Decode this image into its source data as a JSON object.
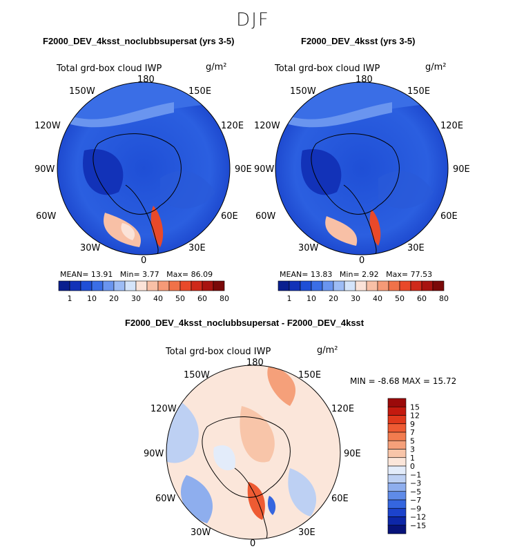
{
  "figure": {
    "season_title": "DJF"
  },
  "panels": [
    {
      "title": "F2000_DEV_4ksst_noclubbsupersat (yrs 3-5)",
      "variable": "Total grd-box cloud IWP",
      "units": "g/m²",
      "stats": {
        "mean_label": "MEAN=",
        "mean": "13.91",
        "min_label": "Min=",
        "min": "3.77",
        "max_label": "Max=",
        "max": "86.09"
      }
    },
    {
      "title": "F2000_DEV_4ksst (yrs 3-5)",
      "variable": "Total grd-box cloud IWP",
      "units": "g/m²",
      "stats": {
        "mean_label": "MEAN=",
        "mean": "13.83",
        "min_label": "Min=",
        "min": "2.92",
        "max_label": "Max=",
        "max": "77.53"
      }
    },
    {
      "title": "F2000_DEV_4ksst_noclubbsupersat - F2000_DEV_4ksst",
      "variable": "Total grd-box cloud IWP",
      "units": "g/m²",
      "range_text": "MIN =   -8.68 MAX =   15.72"
    }
  ],
  "longitude_labels": [
    "180",
    "150E",
    "120E",
    "90E",
    "60E",
    "30E",
    "0",
    "30W",
    "60W",
    "90W",
    "120W",
    "150W"
  ],
  "chart_data": [
    {
      "type": "heatmap",
      "projection": "north polar stereographic",
      "title": "F2000_DEV_4ksst_noclubbsupersat (yrs 3-5)",
      "variable": "Total grd-box cloud IWP",
      "units": "g/m²",
      "mean": 13.91,
      "min": 3.77,
      "max": 86.09,
      "colorbar_ticks": [
        "1",
        "10",
        "20",
        "30",
        "40",
        "50",
        "60",
        "80"
      ],
      "colorbar_colors": [
        "#0a1f8f",
        "#1232b8",
        "#1f4fd6",
        "#3a6ee6",
        "#6a95ef",
        "#9dbcf5",
        "#d4e4fa",
        "#fbe3d8",
        "#f8c0a6",
        "#f59a77",
        "#f07249",
        "#e9492a",
        "#cf2a1a",
        "#a81410",
        "#7a0908"
      ]
    },
    {
      "type": "heatmap",
      "projection": "north polar stereographic",
      "title": "F2000_DEV_4ksst (yrs 3-5)",
      "variable": "Total grd-box cloud IWP",
      "units": "g/m²",
      "mean": 13.83,
      "min": 2.92,
      "max": 77.53,
      "colorbar_ticks": [
        "1",
        "10",
        "20",
        "30",
        "40",
        "50",
        "60",
        "80"
      ],
      "colorbar_colors": [
        "#0a1f8f",
        "#1232b8",
        "#1f4fd6",
        "#3a6ee6",
        "#6a95ef",
        "#9dbcf5",
        "#d4e4fa",
        "#fbe3d8",
        "#f8c0a6",
        "#f59a77",
        "#f07249",
        "#e9492a",
        "#cf2a1a",
        "#a81410",
        "#7a0908"
      ]
    },
    {
      "type": "heatmap",
      "projection": "north polar stereographic",
      "title": "F2000_DEV_4ksst_noclubbsupersat - F2000_DEV_4ksst",
      "variable": "Total grd-box cloud IWP",
      "units": "g/m²",
      "min": -8.68,
      "max": 15.72,
      "colorbar_ticks": [
        "15",
        "12",
        "9",
        "7",
        "5",
        "3",
        "1",
        "0",
        "−1",
        "−3",
        "−5",
        "−7",
        "−9",
        "−12",
        "−15"
      ],
      "colorbar_colors": [
        "#9b0a0a",
        "#c41a0f",
        "#e0391c",
        "#ee5b33",
        "#f27c4f",
        "#f5a07a",
        "#f8c5a9",
        "#fbe6da",
        "#e3ecfa",
        "#bdd0f3",
        "#8eaeee",
        "#5f8be8",
        "#3566df",
        "#1c43cc",
        "#0d27a8",
        "#07137a"
      ]
    }
  ]
}
